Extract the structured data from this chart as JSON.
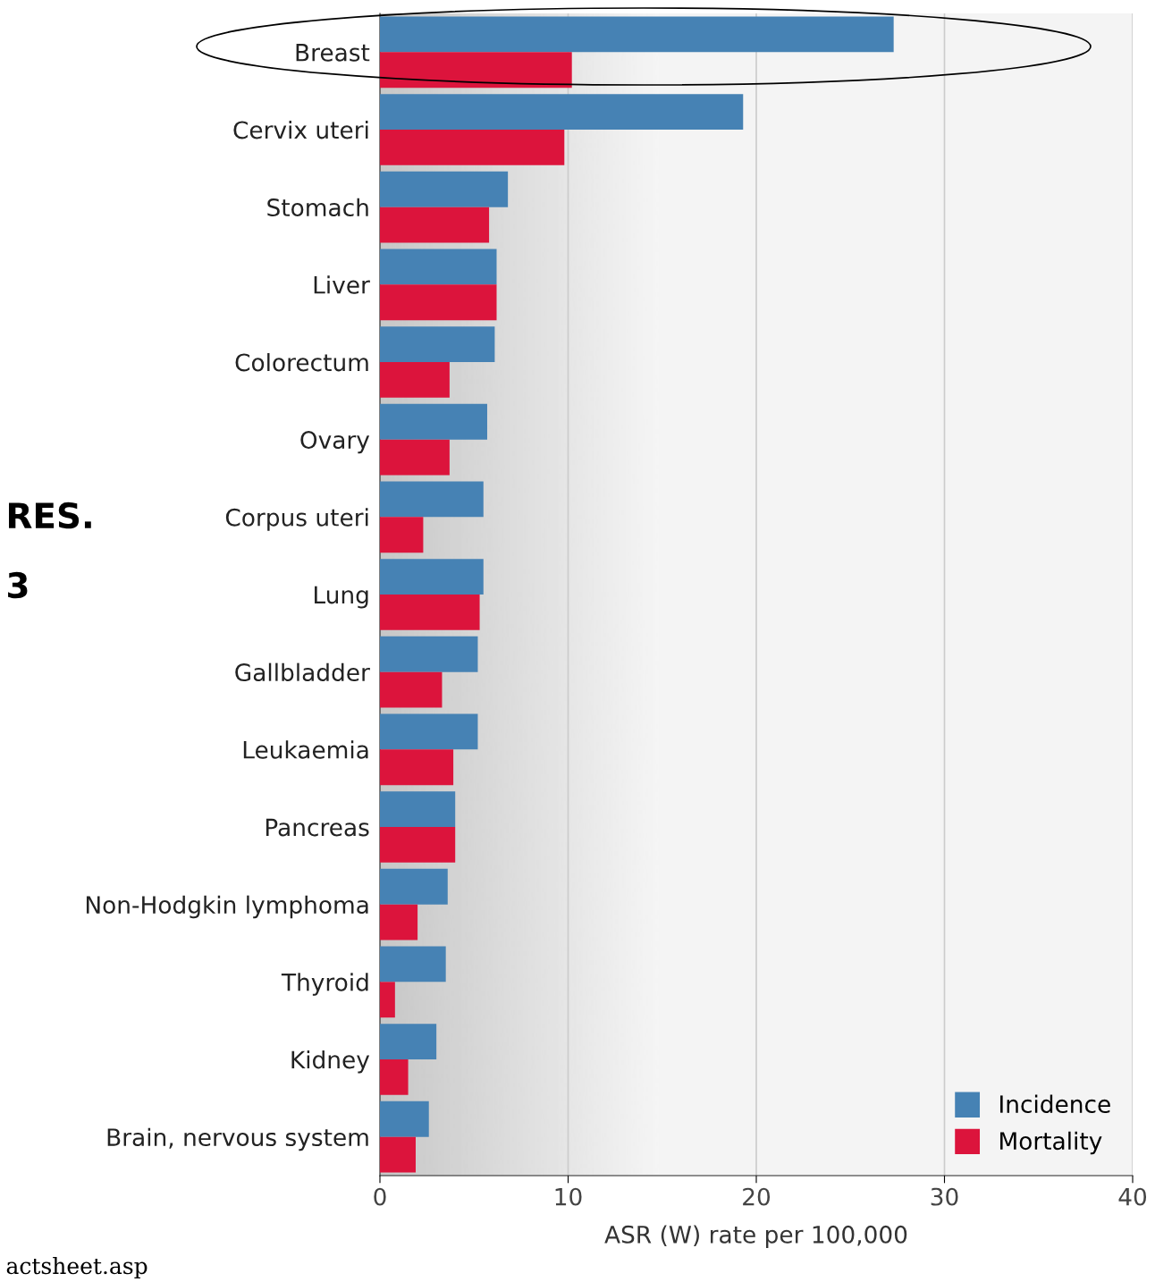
{
  "chart_data": {
    "type": "bar",
    "orientation": "horizontal",
    "xlabel": "ASR (W) rate per 100,000",
    "categories": [
      "Breast",
      "Cervix uteri",
      "Stomach",
      "Liver",
      "Colorectum",
      "Ovary",
      "Corpus uteri",
      "Lung",
      "Gallbladder",
      "Leukaemia",
      "Pancreas",
      "Non-Hodgkin lymphoma",
      "Thyroid",
      "Kidney",
      "Brain, nervous system"
    ],
    "series": [
      {
        "name": "Incidence",
        "color": "#4682b4",
        "values": [
          27.3,
          19.3,
          6.8,
          6.2,
          6.1,
          5.7,
          5.5,
          5.5,
          5.2,
          5.2,
          4.0,
          3.6,
          3.5,
          3.0,
          2.6
        ]
      },
      {
        "name": "Mortality",
        "color": "#dc143c",
        "values": [
          10.2,
          9.8,
          5.8,
          6.2,
          3.7,
          3.7,
          2.3,
          5.3,
          3.3,
          3.9,
          4.0,
          2.0,
          0.8,
          1.5,
          1.9
        ]
      }
    ],
    "xlim": [
      0,
      40
    ],
    "xticks": [
      0,
      10,
      20,
      30,
      40
    ],
    "grid": "x",
    "legend": "bottom right",
    "annotations": [
      "RES.",
      "3",
      "actsheet.asp"
    ]
  }
}
